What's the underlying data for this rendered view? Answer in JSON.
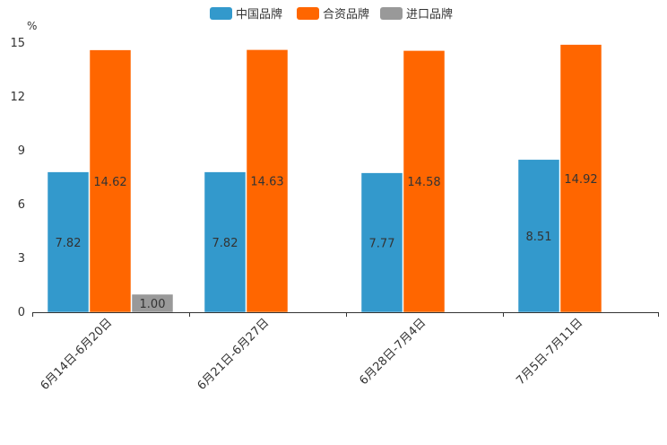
{
  "chart_data": {
    "type": "bar",
    "title": "",
    "unit_label": "%",
    "xlabel": "",
    "ylabel": "%",
    "ylim": [
      0,
      15
    ],
    "yticks": [
      0,
      3,
      6,
      9,
      12,
      15
    ],
    "legend_position": "top-center",
    "categories": [
      "6月14日-6月20日",
      "6月21日-6月27日",
      "6月28日-7月4日",
      "7月5日-7月11日"
    ],
    "series": [
      {
        "name": "中国品牌",
        "color": "#3399cc",
        "values": [
          7.82,
          7.82,
          7.77,
          8.51
        ],
        "labels": [
          "7.82",
          "7.82",
          "7.77",
          "8.51"
        ]
      },
      {
        "name": "合资品牌",
        "color": "#ff6600",
        "values": [
          14.62,
          14.63,
          14.58,
          14.92
        ],
        "labels": [
          "14.62",
          "14.63",
          "14.58",
          "14.92"
        ]
      },
      {
        "name": "进口品牌",
        "color": "#999999",
        "values": [
          1.0,
          null,
          null,
          null
        ],
        "labels": [
          "1.00",
          null,
          null,
          null
        ]
      }
    ]
  }
}
